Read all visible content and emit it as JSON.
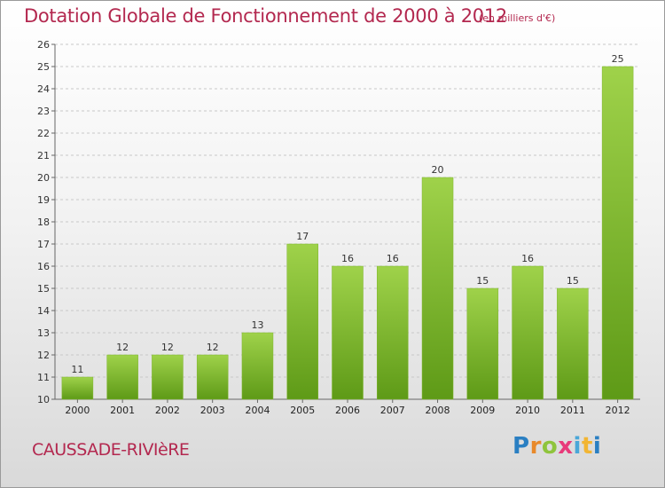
{
  "header": {
    "title": "Dotation Globale de Fonctionnement de 2000 à 2012",
    "unit": "(en milliers d'€)"
  },
  "footer": {
    "commune": "CAUSSADE-RIVIèRE",
    "logo_text": "Proxiti"
  },
  "colors": {
    "title": "#b3284f",
    "bar_top": "#9fd24a",
    "bar_bottom": "#5e9a17"
  },
  "chart_data": {
    "type": "bar",
    "title": "Dotation Globale de Fonctionnement de 2000 à 2012",
    "subtitle": "(en milliers d'€)",
    "xlabel": "",
    "ylabel": "",
    "categories": [
      "2000",
      "2001",
      "2002",
      "2003",
      "2004",
      "2005",
      "2006",
      "2007",
      "2008",
      "2009",
      "2010",
      "2011",
      "2012"
    ],
    "values": [
      11,
      12,
      12,
      12,
      13,
      17,
      16,
      16,
      20,
      15,
      16,
      15,
      25
    ],
    "ylim": [
      10,
      26
    ],
    "yticks": [
      10,
      11,
      12,
      13,
      14,
      15,
      16,
      17,
      18,
      19,
      20,
      21,
      22,
      23,
      24,
      25,
      26
    ],
    "grid": "horizontal-dashed",
    "data_labels": true
  }
}
